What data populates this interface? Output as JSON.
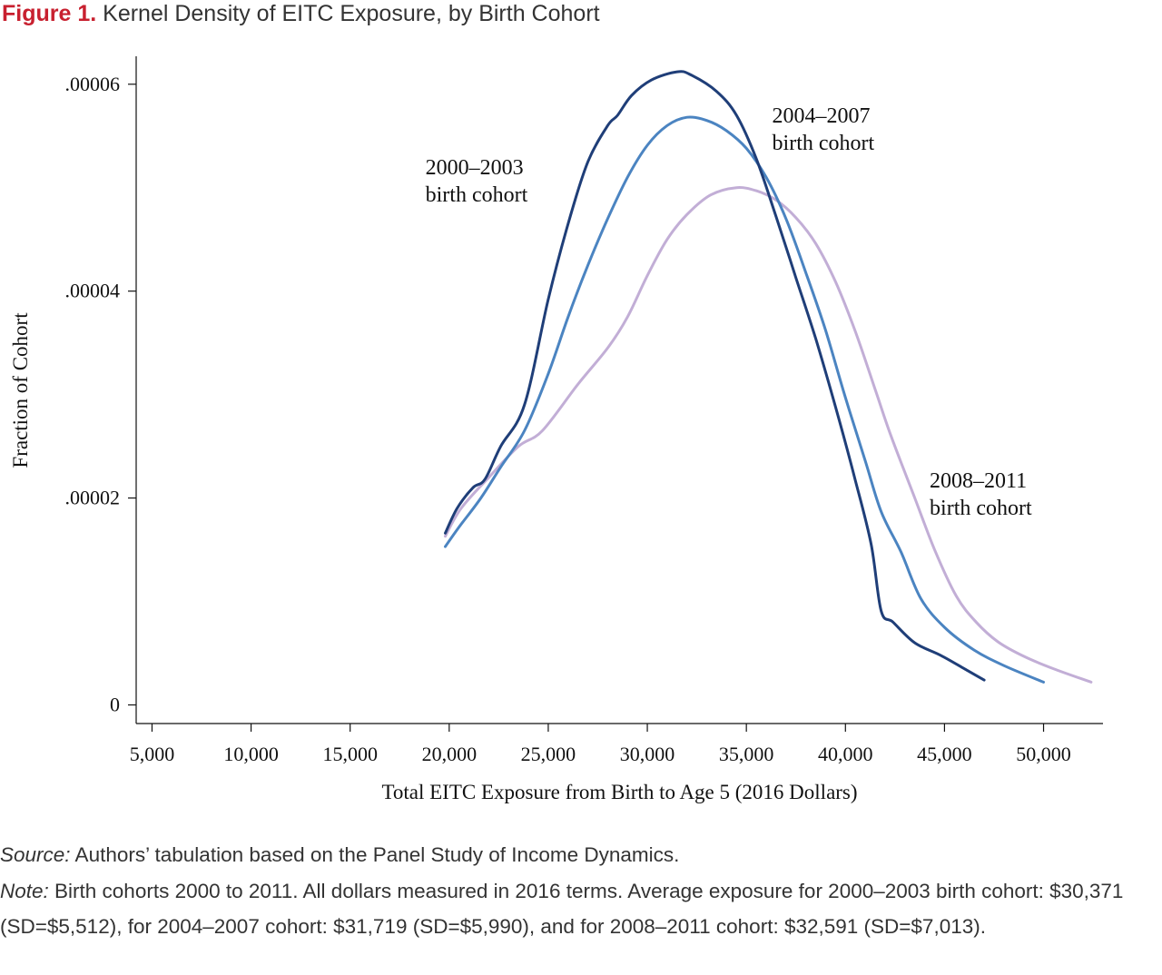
{
  "figure": {
    "number_label": "Figure 1.",
    "title": "Kernel Density of EITC Exposure, by Birth Cohort"
  },
  "chart_data": {
    "type": "line",
    "xlabel": "Total EITC Exposure from Birth to Age 5 (2016 Dollars)",
    "ylabel": "Fraction of Cohort",
    "xlim": [
      4200,
      53000
    ],
    "ylim": [
      -1.8e-06,
      6.27e-05
    ],
    "x_ticks": [
      5000,
      10000,
      15000,
      20000,
      25000,
      30000,
      35000,
      40000,
      45000,
      50000
    ],
    "x_tick_labels": [
      "5,000",
      "10,000",
      "15,000",
      "20,000",
      "25,000",
      "30,000",
      "35,000",
      "40,000",
      "45,000",
      "50,000"
    ],
    "y_ticks": [
      0,
      2e-05,
      4e-05,
      6e-05
    ],
    "y_tick_labels": [
      "0",
      ".00002",
      ".00004",
      ".00006"
    ],
    "grid": false,
    "legend": "none",
    "series": [
      {
        "name": "2000–2003 birth cohort",
        "label_lines": [
          "2000–2003",
          "birth cohort"
        ],
        "color": "#1f3e78",
        "label_at": {
          "x": 18800,
          "y": 5.13e-05
        },
        "points": [
          [
            19800,
            1.66e-05
          ],
          [
            20400,
            1.9e-05
          ],
          [
            21200,
            2.1e-05
          ],
          [
            21800,
            2.18e-05
          ],
          [
            22600,
            2.5e-05
          ],
          [
            23800,
            2.9e-05
          ],
          [
            25000,
            3.92e-05
          ],
          [
            26000,
            4.65e-05
          ],
          [
            27000,
            5.25e-05
          ],
          [
            28000,
            5.6e-05
          ],
          [
            28500,
            5.7e-05
          ],
          [
            29200,
            5.89e-05
          ],
          [
            30200,
            6.04e-05
          ],
          [
            31500,
            6.12e-05
          ],
          [
            32200,
            6.09e-05
          ],
          [
            33500,
            5.93e-05
          ],
          [
            34500,
            5.7e-05
          ],
          [
            35500,
            5.28e-05
          ],
          [
            36500,
            4.72e-05
          ],
          [
            37500,
            4.13e-05
          ],
          [
            38500,
            3.54e-05
          ],
          [
            39500,
            2.88e-05
          ],
          [
            40500,
            2.17e-05
          ],
          [
            41300,
            1.55e-05
          ],
          [
            41800,
            9.1e-06
          ],
          [
            42400,
            8e-06
          ],
          [
            43500,
            6e-06
          ],
          [
            44800,
            4.8e-06
          ],
          [
            46000,
            3.5e-06
          ],
          [
            47000,
            2.4e-06
          ]
        ]
      },
      {
        "name": "2004–2007 birth cohort",
        "label_lines": [
          "2004–2007",
          "birth cohort"
        ],
        "color": "#4b84c1",
        "label_at": {
          "x": 36300,
          "y": 5.63e-05
        },
        "points": [
          [
            19800,
            1.53e-05
          ],
          [
            20500,
            1.72e-05
          ],
          [
            21600,
            2e-05
          ],
          [
            22600,
            2.3e-05
          ],
          [
            23800,
            2.65e-05
          ],
          [
            25000,
            3.2e-05
          ],
          [
            26000,
            3.75e-05
          ],
          [
            27000,
            4.25e-05
          ],
          [
            28000,
            4.7e-05
          ],
          [
            29000,
            5.1e-05
          ],
          [
            30000,
            5.41e-05
          ],
          [
            31000,
            5.6e-05
          ],
          [
            32000,
            5.68e-05
          ],
          [
            33000,
            5.65e-05
          ],
          [
            34000,
            5.55e-05
          ],
          [
            35000,
            5.38e-05
          ],
          [
            36000,
            5.1e-05
          ],
          [
            37000,
            4.7e-05
          ],
          [
            38000,
            4.18e-05
          ],
          [
            39000,
            3.62e-05
          ],
          [
            40000,
            2.97e-05
          ],
          [
            41000,
            2.36e-05
          ],
          [
            41800,
            1.87e-05
          ],
          [
            42800,
            1.48e-05
          ],
          [
            43800,
            1.03e-05
          ],
          [
            45000,
            7.5e-06
          ],
          [
            46500,
            5.3e-06
          ],
          [
            48000,
            3.8e-06
          ],
          [
            50000,
            2.2e-06
          ]
        ]
      },
      {
        "name": "2008–2011 birth cohort",
        "label_lines": [
          "2008–2011",
          "birth cohort"
        ],
        "color": "#c2aed6",
        "label_at": {
          "x": 44250,
          "y": 2.1e-05
        },
        "points": [
          [
            19800,
            1.63e-05
          ],
          [
            20600,
            1.9e-05
          ],
          [
            22000,
            2.2e-05
          ],
          [
            23500,
            2.5e-05
          ],
          [
            24700,
            2.65e-05
          ],
          [
            26500,
            3.1e-05
          ],
          [
            28000,
            3.45e-05
          ],
          [
            29000,
            3.75e-05
          ],
          [
            30000,
            4.15e-05
          ],
          [
            31000,
            4.5e-05
          ],
          [
            32000,
            4.74e-05
          ],
          [
            33200,
            4.93e-05
          ],
          [
            34500,
            5e-05
          ],
          [
            35500,
            4.97e-05
          ],
          [
            36500,
            4.88e-05
          ],
          [
            37500,
            4.71e-05
          ],
          [
            38500,
            4.46e-05
          ],
          [
            39500,
            4.09e-05
          ],
          [
            40500,
            3.61e-05
          ],
          [
            41500,
            3.05e-05
          ],
          [
            42300,
            2.6e-05
          ],
          [
            43500,
            2e-05
          ],
          [
            44500,
            1.5e-05
          ],
          [
            45600,
            1.05e-05
          ],
          [
            46600,
            8e-06
          ],
          [
            47700,
            6.1e-06
          ],
          [
            49000,
            4.7e-06
          ],
          [
            50500,
            3.5e-06
          ],
          [
            52400,
            2.2e-06
          ]
        ]
      }
    ]
  },
  "notes": {
    "source_label": "Source:",
    "source_text": " Authors’ tabulation based on the Panel Study of Income Dynamics.",
    "note_label": "Note:",
    "note_text": " Birth cohorts 2000 to 2011. All dollars measured in 2016 terms. Average exposure for 2000–2003 birth cohort: $30,371 (SD=$5,512), for 2004–2007 cohort: $31,719 (SD=$5,990), and for 2008–2011 cohort: $32,591 (SD=$7,013)."
  }
}
